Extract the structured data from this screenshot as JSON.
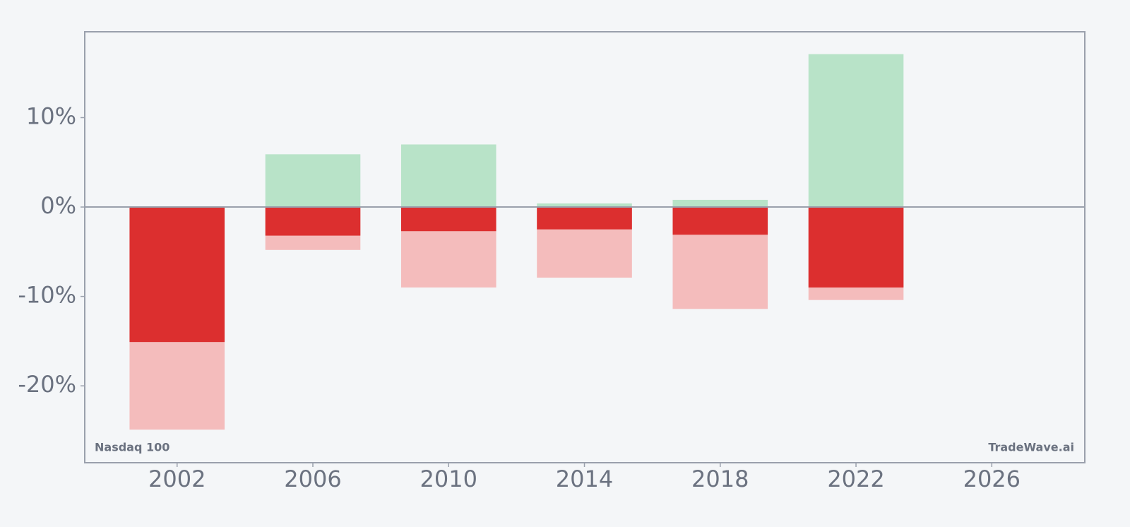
{
  "chart_data": {
    "type": "bar",
    "x": [
      2002,
      2006,
      2010,
      2014,
      2018,
      2022
    ],
    "series": [
      {
        "color": "#b8e3c8",
        "values": [
          0,
          5.9,
          7.0,
          0.4,
          0.8,
          17.1
        ]
      },
      {
        "color": "#f4bcbc",
        "values": [
          -24.9,
          -4.8,
          -9.0,
          -7.9,
          -11.4,
          -10.4
        ]
      },
      {
        "color": "#dc2f2f",
        "values": [
          -15.1,
          -3.2,
          -2.7,
          -2.5,
          -3.1,
          -9.0
        ]
      }
    ],
    "xlim": [
      1999.28,
      2028.74
    ],
    "xticks": [
      2002,
      2006,
      2010,
      2014,
      2018,
      2022,
      2026
    ],
    "ylim": [
      -28.6,
      19.6
    ],
    "yticks": [
      {
        "value": -20,
        "label": "-20%"
      },
      {
        "value": -10,
        "label": "-10%"
      },
      {
        "value": 0,
        "label": "0%"
      },
      {
        "value": 10,
        "label": "10%"
      }
    ],
    "annotations": [
      "Nasdaq 100",
      "TradeWave.ai"
    ]
  }
}
